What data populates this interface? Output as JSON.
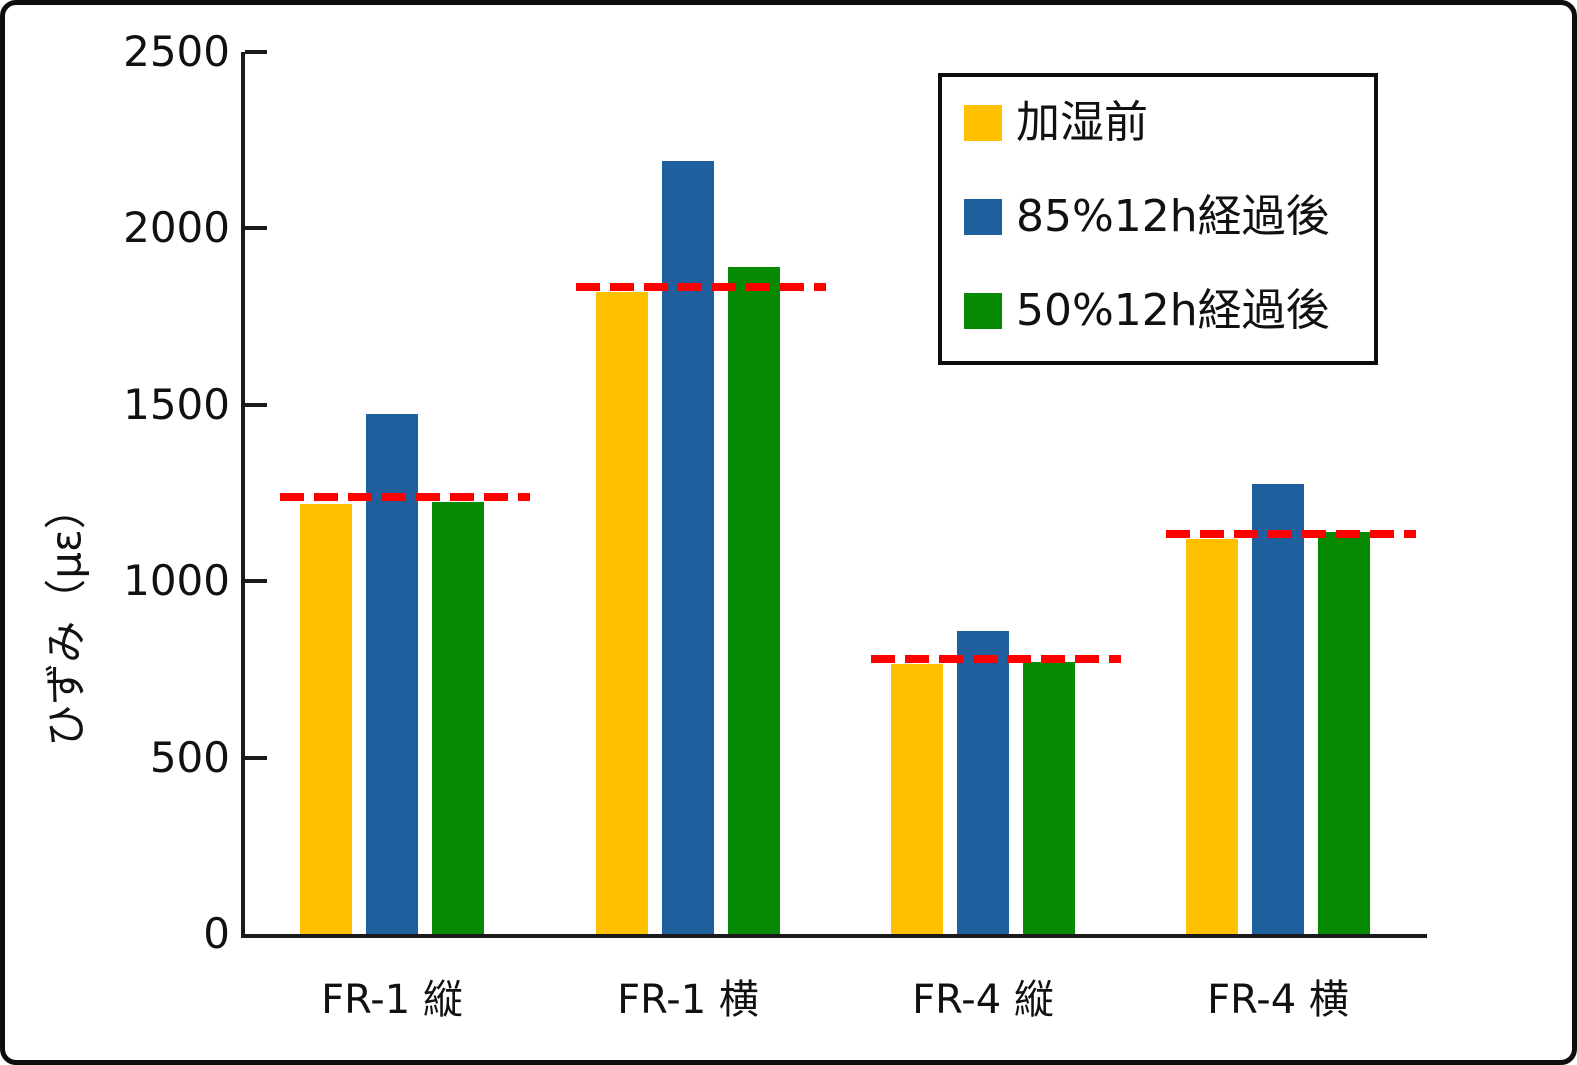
{
  "chart_data": {
    "type": "bar",
    "title": "",
    "xlabel": "",
    "ylabel": "ひずみ（με）",
    "ylim": [
      0,
      2500
    ],
    "yticks": [
      0,
      500,
      1000,
      1500,
      2000,
      2500
    ],
    "grid": false,
    "legend_position": "top-right",
    "categories": [
      "FR-1 縦",
      "FR-1 横",
      "FR-4 縦",
      "FR-4 横"
    ],
    "series": [
      {
        "name": "加湿前",
        "color": "#FFC000",
        "values": [
          1220,
          1820,
          765,
          1120
        ]
      },
      {
        "name": "85%12h経過後",
        "color": "#1F5F9E",
        "values": [
          1475,
          2190,
          860,
          1275
        ]
      },
      {
        "name": "50%12h経過後",
        "color": "#068A06",
        "values": [
          1225,
          1890,
          770,
          1140
        ]
      }
    ],
    "reference_lines": {
      "color": "#FF0000",
      "style": "dashed",
      "values": [
        1240,
        1835,
        780,
        1135
      ]
    },
    "axis_color": "#1a1a1a"
  }
}
